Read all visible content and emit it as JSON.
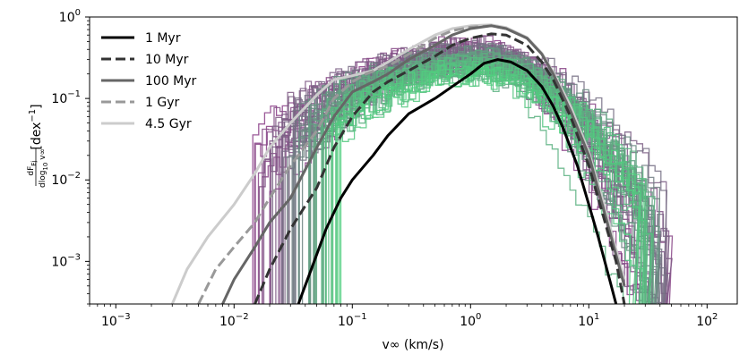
{
  "chart_data": {
    "type": "line",
    "xscale": "log",
    "yscale": "log",
    "xlim": [
      0.0006,
      180
    ],
    "ylim": [
      0.0003,
      1.0
    ],
    "xlabel": "v∞ (km/s)",
    "ylabel_parts": {
      "numerator": "dF",
      "numerator_sub": "Ej",
      "denominator": "dlog",
      "denominator_sub": "10",
      "denominator_tail": " v∞",
      "unit": "[dex",
      "unit_sup": "−1",
      "unit_close": "]"
    },
    "xticks": [
      {
        "value": 0.001,
        "base": "10",
        "exp": "−3"
      },
      {
        "value": 0.01,
        "base": "10",
        "exp": "−2"
      },
      {
        "value": 0.1,
        "base": "10",
        "exp": "−1"
      },
      {
        "value": 1,
        "base": "10",
        "exp": "0"
      },
      {
        "value": 10,
        "base": "10",
        "exp": "1"
      },
      {
        "value": 100,
        "base": "10",
        "exp": "2"
      }
    ],
    "yticks": [
      {
        "value": 0.001,
        "base": "10",
        "exp": "−3"
      },
      {
        "value": 0.01,
        "base": "10",
        "exp": "−2"
      },
      {
        "value": 0.1,
        "base": "10",
        "exp": "−1"
      },
      {
        "value": 1,
        "base": "10",
        "exp": "0"
      }
    ],
    "legend_position": "top-left",
    "series": [
      {
        "name": "1 Myr",
        "color": "#000000",
        "style": "solid",
        "points": [
          [
            0.035,
            0.0003
          ],
          [
            0.045,
            0.0008
          ],
          [
            0.06,
            0.0025
          ],
          [
            0.08,
            0.006
          ],
          [
            0.1,
            0.01
          ],
          [
            0.15,
            0.02
          ],
          [
            0.2,
            0.035
          ],
          [
            0.3,
            0.065
          ],
          [
            0.5,
            0.1
          ],
          [
            0.7,
            0.14
          ],
          [
            1.0,
            0.2
          ],
          [
            1.3,
            0.27
          ],
          [
            1.7,
            0.3
          ],
          [
            2.2,
            0.28
          ],
          [
            3,
            0.22
          ],
          [
            4,
            0.14
          ],
          [
            5,
            0.08
          ],
          [
            6,
            0.045
          ],
          [
            8,
            0.015
          ],
          [
            10,
            0.005
          ],
          [
            12,
            0.002
          ],
          [
            15,
            0.0006
          ],
          [
            17,
            0.0003
          ]
        ]
      },
      {
        "name": "10 Myr",
        "color": "#333333",
        "style": "dashed",
        "points": [
          [
            0.015,
            0.0003
          ],
          [
            0.02,
            0.0008
          ],
          [
            0.03,
            0.0025
          ],
          [
            0.05,
            0.008
          ],
          [
            0.07,
            0.025
          ],
          [
            0.1,
            0.06
          ],
          [
            0.15,
            0.12
          ],
          [
            0.2,
            0.16
          ],
          [
            0.3,
            0.22
          ],
          [
            0.5,
            0.33
          ],
          [
            0.7,
            0.45
          ],
          [
            1.0,
            0.55
          ],
          [
            1.5,
            0.62
          ],
          [
            2,
            0.6
          ],
          [
            3,
            0.45
          ],
          [
            4,
            0.28
          ],
          [
            5,
            0.17
          ],
          [
            7,
            0.06
          ],
          [
            10,
            0.015
          ],
          [
            13,
            0.004
          ],
          [
            17,
            0.001
          ],
          [
            20,
            0.0003
          ]
        ]
      },
      {
        "name": "100 Myr",
        "color": "#666666",
        "style": "solid",
        "points": [
          [
            0.008,
            0.0003
          ],
          [
            0.01,
            0.0006
          ],
          [
            0.015,
            0.0015
          ],
          [
            0.02,
            0.003
          ],
          [
            0.03,
            0.006
          ],
          [
            0.05,
            0.025
          ],
          [
            0.07,
            0.06
          ],
          [
            0.1,
            0.12
          ],
          [
            0.15,
            0.16
          ],
          [
            0.2,
            0.2
          ],
          [
            0.3,
            0.3
          ],
          [
            0.5,
            0.45
          ],
          [
            0.7,
            0.6
          ],
          [
            1.0,
            0.72
          ],
          [
            1.5,
            0.78
          ],
          [
            2,
            0.72
          ],
          [
            3,
            0.55
          ],
          [
            4,
            0.35
          ],
          [
            5,
            0.2
          ],
          [
            7,
            0.07
          ],
          [
            10,
            0.02
          ],
          [
            13,
            0.005
          ],
          [
            17,
            0.0012
          ],
          [
            20,
            0.0005
          ]
        ]
      },
      {
        "name": "1 Gyr",
        "color": "#999999",
        "style": "dashed",
        "points": [
          [
            0.005,
            0.0003
          ],
          [
            0.007,
            0.0008
          ],
          [
            0.01,
            0.0015
          ],
          [
            0.015,
            0.003
          ],
          [
            0.02,
            0.006
          ],
          [
            0.03,
            0.015
          ],
          [
            0.05,
            0.04
          ],
          [
            0.07,
            0.1
          ],
          [
            0.1,
            0.16
          ],
          [
            0.13,
            0.2
          ],
          [
            0.2,
            0.25
          ],
          [
            0.3,
            0.35
          ],
          [
            0.5,
            0.55
          ],
          [
            0.7,
            0.68
          ],
          [
            1.0,
            0.75
          ],
          [
            1.5,
            0.78
          ],
          [
            2,
            0.72
          ],
          [
            3,
            0.55
          ],
          [
            4,
            0.35
          ],
          [
            5,
            0.2
          ],
          [
            7,
            0.07
          ],
          [
            10,
            0.02
          ],
          [
            13,
            0.005
          ],
          [
            17,
            0.0012
          ],
          [
            20,
            0.0005
          ]
        ]
      },
      {
        "name": "4.5 Gyr",
        "color": "#cccccc",
        "style": "solid",
        "points": [
          [
            0.003,
            0.0003
          ],
          [
            0.004,
            0.0008
          ],
          [
            0.006,
            0.002
          ],
          [
            0.01,
            0.005
          ],
          [
            0.015,
            0.012
          ],
          [
            0.02,
            0.025
          ],
          [
            0.03,
            0.05
          ],
          [
            0.05,
            0.11
          ],
          [
            0.07,
            0.17
          ],
          [
            0.1,
            0.19
          ],
          [
            0.15,
            0.22
          ],
          [
            0.2,
            0.28
          ],
          [
            0.3,
            0.4
          ],
          [
            0.5,
            0.6
          ],
          [
            0.7,
            0.72
          ],
          [
            1.0,
            0.78
          ],
          [
            1.5,
            0.8
          ],
          [
            2,
            0.74
          ],
          [
            3,
            0.56
          ],
          [
            4,
            0.36
          ],
          [
            5,
            0.21
          ],
          [
            7,
            0.08
          ],
          [
            10,
            0.022
          ],
          [
            13,
            0.006
          ],
          [
            17,
            0.0014
          ],
          [
            20,
            0.0006
          ]
        ]
      }
    ],
    "histograms": {
      "count": 60,
      "note": "ensemble of step histograms; colour runs from purple (#8b3a87, high-velocity tail) to green (#50d07f, low-velocity tail)",
      "color_start": "#8b3a87",
      "color_end": "#50d07f",
      "vmin_range": [
        0.012,
        0.08
      ],
      "vmax_range": [
        18,
        50
      ],
      "peak_v_range": [
        0.8,
        1.6
      ],
      "peak_f_range": [
        0.12,
        0.4
      ]
    }
  }
}
